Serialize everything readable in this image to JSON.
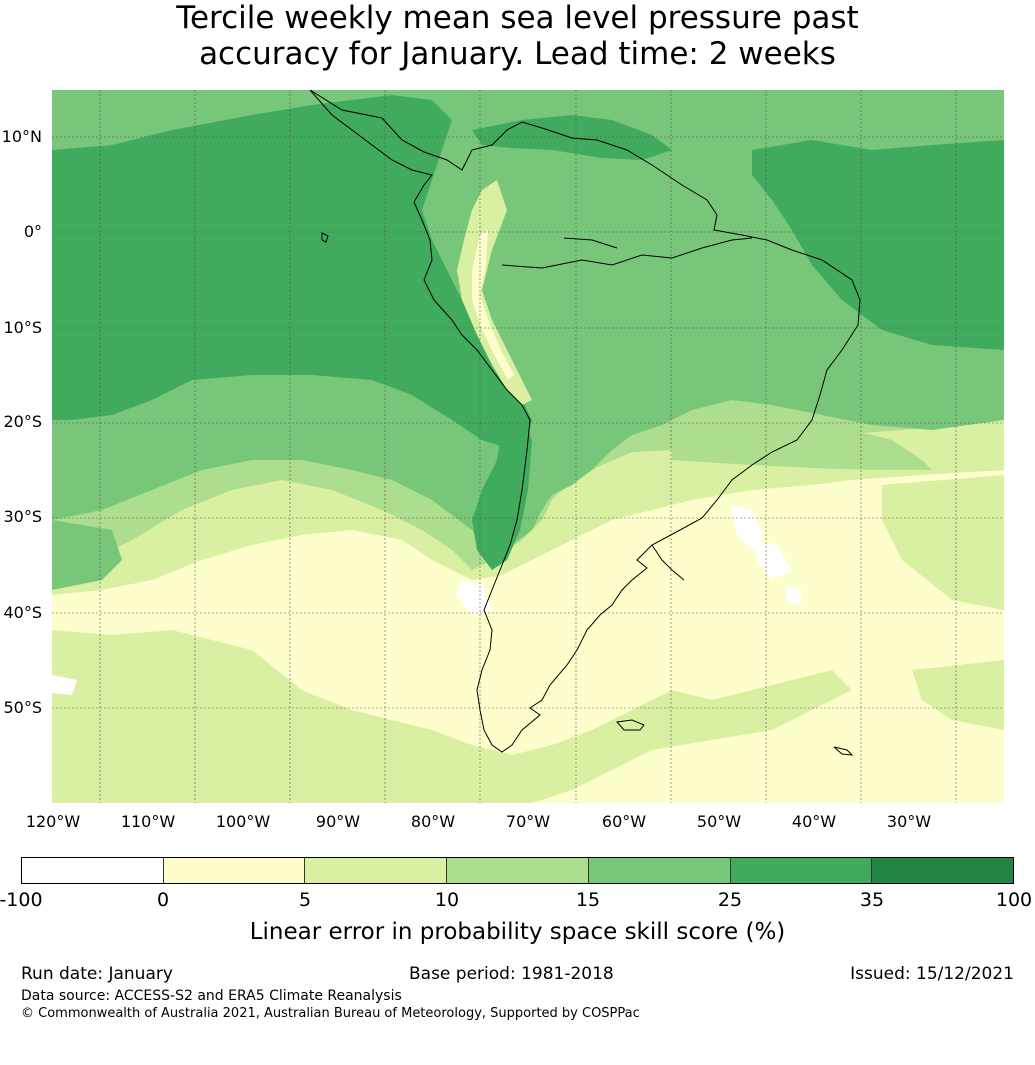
{
  "title": {
    "line1": "Tercile weekly mean sea level pressure past",
    "line2": "accuracy for January. Lead time: 2 weeks"
  },
  "map": {
    "latitude_labels": [
      "10°N",
      "0°",
      "10°S",
      "20°S",
      "30°S",
      "40°S",
      "50°S"
    ],
    "longitude_labels": [
      "120°W",
      "110°W",
      "100°W",
      "90°W",
      "80°W",
      "70°W",
      "60°W",
      "50°W",
      "40°W",
      "30°W"
    ],
    "extent": {
      "lon_min": -125,
      "lon_max": -25,
      "lat_min": -60,
      "lat_max": 15
    }
  },
  "colorbar": {
    "ticks": [
      "-100",
      "0",
      "5",
      "10",
      "15",
      "25",
      "35",
      "100"
    ],
    "colors": [
      "#ffffff",
      "#fefecd",
      "#d9f0a3",
      "#addd8e",
      "#78c679",
      "#41ab5d",
      "#238443"
    ],
    "label": "Linear error in probability space skill score (%)"
  },
  "footer": {
    "run_date": "Run date: January",
    "base_period": "Base period: 1981-2018",
    "issued": "Issued: 15/12/2021",
    "data_source": "Data source: ACCESS-S2 and ERA5 Climate Reanalysis",
    "copyright": "© Commonwealth of Australia 2021, Australian Bureau of Meteorology, Supported by COSPPac"
  }
}
